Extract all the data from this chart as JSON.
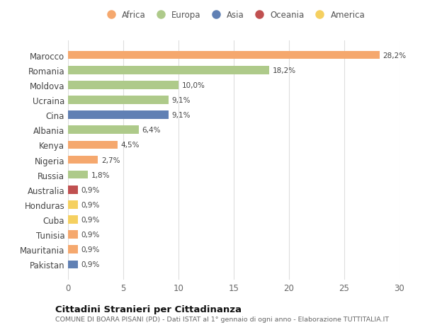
{
  "countries": [
    "Marocco",
    "Romania",
    "Moldova",
    "Ucraina",
    "Cina",
    "Albania",
    "Kenya",
    "Nigeria",
    "Russia",
    "Australia",
    "Honduras",
    "Cuba",
    "Tunisia",
    "Mauritania",
    "Pakistan"
  ],
  "values": [
    28.2,
    18.2,
    10.0,
    9.1,
    9.1,
    6.4,
    4.5,
    2.7,
    1.8,
    0.9,
    0.9,
    0.9,
    0.9,
    0.9,
    0.9
  ],
  "labels": [
    "28,2%",
    "18,2%",
    "10,0%",
    "9,1%",
    "9,1%",
    "6,4%",
    "4,5%",
    "2,7%",
    "1,8%",
    "0,9%",
    "0,9%",
    "0,9%",
    "0,9%",
    "0,9%",
    "0,9%"
  ],
  "continents": [
    "Africa",
    "Europa",
    "Europa",
    "Europa",
    "Asia",
    "Europa",
    "Africa",
    "Africa",
    "Europa",
    "Oceania",
    "America",
    "America",
    "Africa",
    "Africa",
    "Asia"
  ],
  "colors": {
    "Africa": "#F5A86E",
    "Europa": "#AECA8A",
    "Asia": "#6080B4",
    "Oceania": "#C05050",
    "America": "#F5D060"
  },
  "legend_order": [
    "Africa",
    "Europa",
    "Asia",
    "Oceania",
    "America"
  ],
  "title": "Cittadini Stranieri per Cittadinanza",
  "subtitle": "COMUNE DI BOARA PISANI (PD) - Dati ISTAT al 1° gennaio di ogni anno - Elaborazione TUTTITALIA.IT",
  "xlim": [
    0,
    30
  ],
  "xticks": [
    0,
    5,
    10,
    15,
    20,
    25,
    30
  ],
  "bg_color": "#ffffff",
  "grid_color": "#dddddd",
  "bar_height": 0.55
}
